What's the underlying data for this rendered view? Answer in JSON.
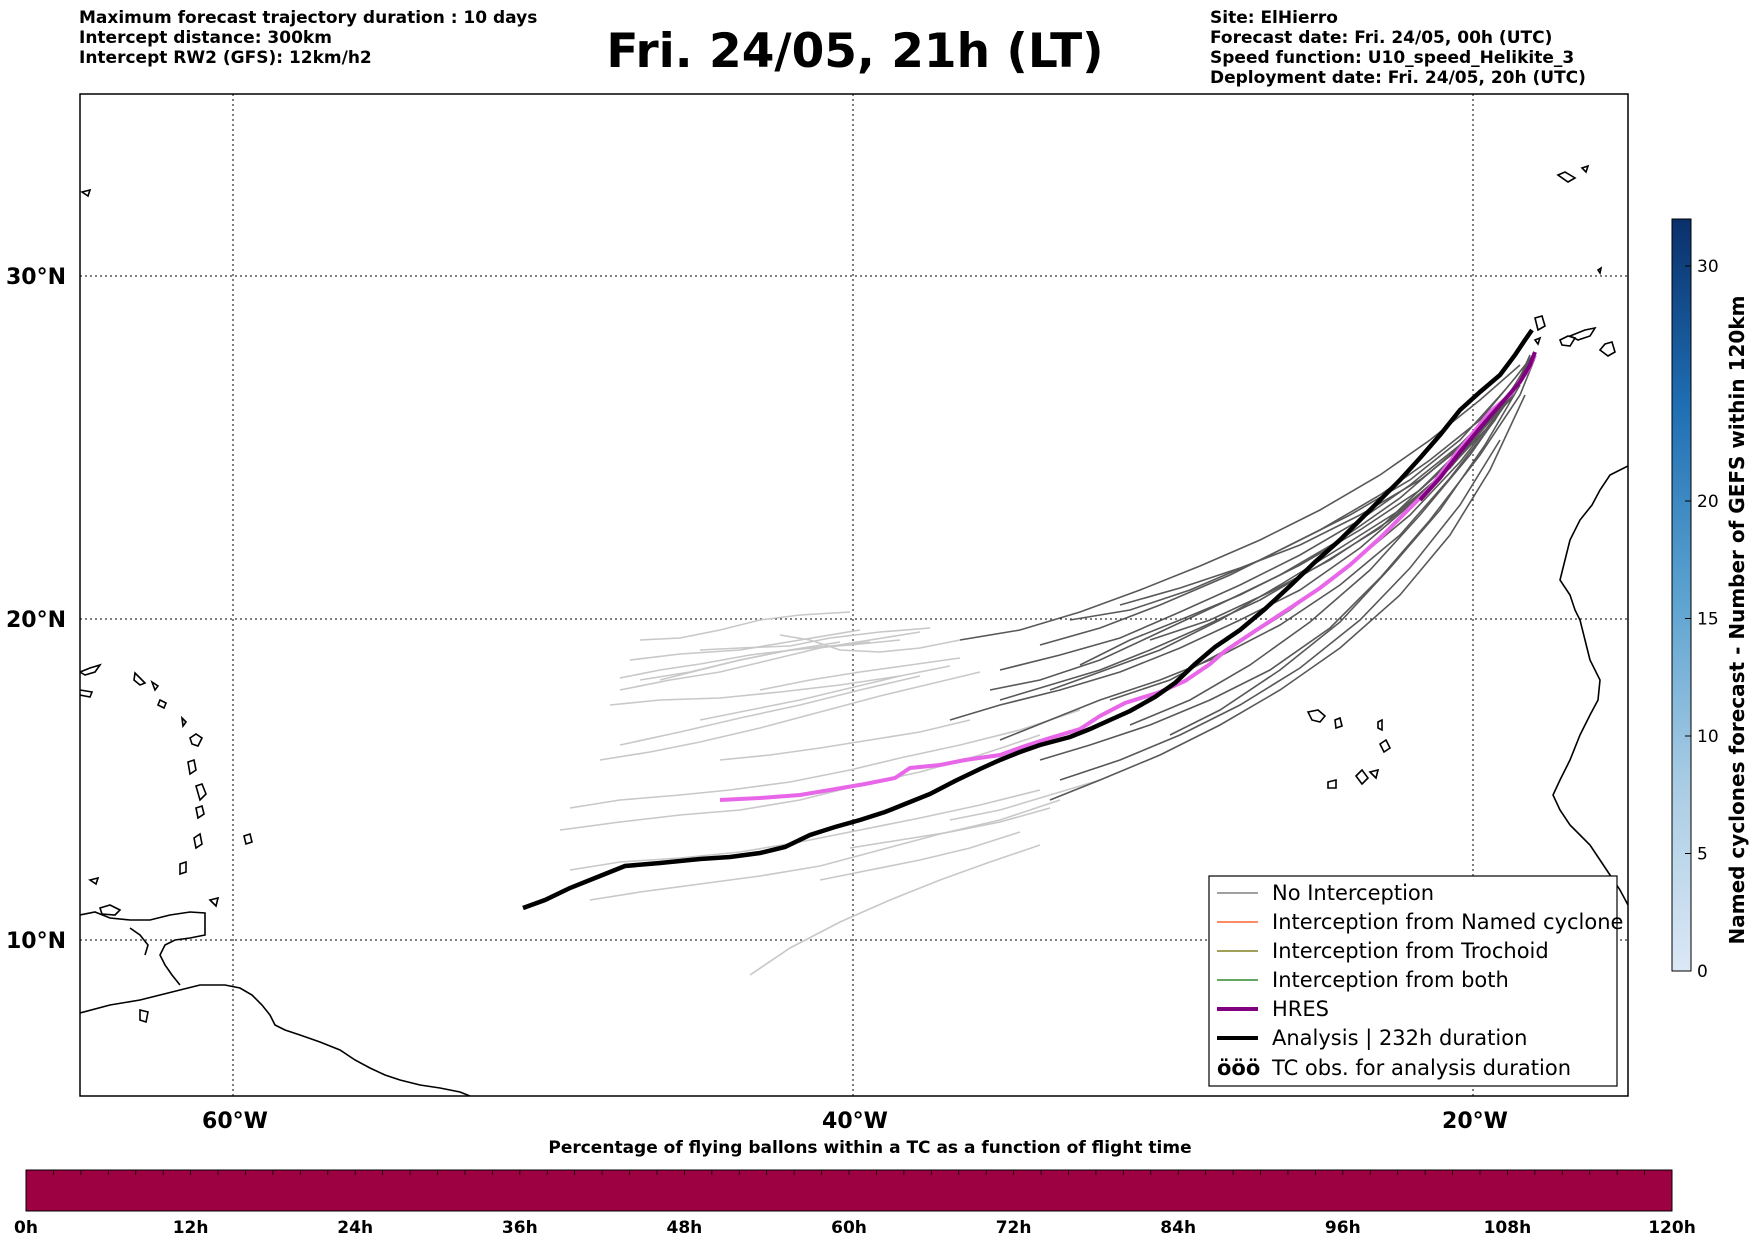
{
  "header_left": {
    "line1": "Maximum forecast trajectory duration : 10 days",
    "line2": "Intercept distance: 300km",
    "line3": "Intercept RW2 (GFS):  12km/h2"
  },
  "title": "Fri. 24/05, 21h (LT)",
  "header_right": {
    "line1": "Site: ElHierro",
    "line2": "Forecast date: Fri. 24/05, 00h (UTC)",
    "line3": "Speed function: U10_speed_Helikite_3",
    "line4": "Deployment date: Fri. 24/05, 20h (UTC)"
  },
  "map": {
    "lat_labels": [
      "30°N",
      "20°N",
      "10°N"
    ],
    "lon_labels": [
      "60°W",
      "40°W",
      "20°W"
    ],
    "grid": "dotted"
  },
  "legend": {
    "items": [
      {
        "label": "No Interception",
        "color": "#808080"
      },
      {
        "label": "Interception from Named cyclone",
        "color": "#ff6633"
      },
      {
        "label": "Interception from Trochoid",
        "color": "#808020"
      },
      {
        "label": "Interception from both",
        "color": "#2e8b2e"
      },
      {
        "label": "HRES",
        "color": "#800080"
      },
      {
        "label": "Analysis | 232h duration",
        "color": "#000000"
      },
      {
        "label": "TC obs. for analysis duration",
        "color": "#000000"
      }
    ],
    "tc_symbol": "ööö"
  },
  "colors": {
    "hres": "#e866e8",
    "analysis": "#000000",
    "no_interception": "#555555",
    "light_trajectories": "#c8c8c8",
    "flight_bar": "#9e0142"
  },
  "colorbar": {
    "label": "Named cyclones forecast - Number of GEFS within 120km",
    "ticks": [
      "0",
      "5",
      "10",
      "15",
      "20",
      "30"
    ],
    "range": [
      0,
      32
    ]
  },
  "flight_time_bar": {
    "title": "Percentage of flying ballons within a TC as a function of flight time",
    "ticks": [
      "0h",
      "12h",
      "24h",
      "36h",
      "48h",
      "60h",
      "72h",
      "84h",
      "96h",
      "108h",
      "120h"
    ]
  }
}
